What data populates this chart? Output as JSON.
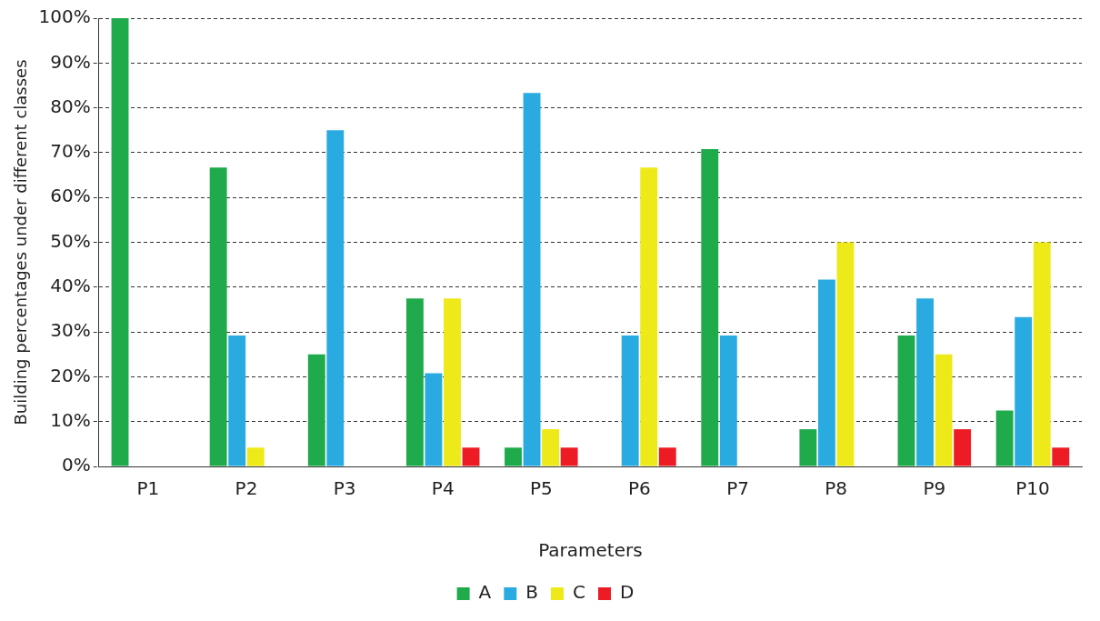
{
  "chart_data": {
    "type": "bar",
    "xlabel": "Parameters",
    "ylabel": "Building percentages under different classes",
    "categories": [
      "P1",
      "P2",
      "P3",
      "P4",
      "P5",
      "P6",
      "P7",
      "P8",
      "P9",
      "P10"
    ],
    "series": [
      {
        "name": "A",
        "color": "#1faa4b",
        "values": [
          100,
          66.7,
          25,
          37.5,
          4.2,
          0,
          70.8,
          8.3,
          29.2,
          12.5
        ]
      },
      {
        "name": "B",
        "color": "#29abe2",
        "values": [
          0,
          29.2,
          75,
          20.8,
          83.3,
          29.2,
          29.2,
          41.7,
          37.5,
          33.3
        ]
      },
      {
        "name": "C",
        "color": "#eeea1a",
        "values": [
          0,
          4.2,
          0,
          37.5,
          8.3,
          66.7,
          0,
          50,
          25,
          50
        ]
      },
      {
        "name": "D",
        "color": "#ed1c24",
        "values": [
          0,
          0,
          0,
          4.2,
          4.2,
          4.2,
          0,
          0,
          8.3,
          4.2
        ]
      }
    ],
    "ylim": [
      0,
      100
    ],
    "yticks": [
      {
        "value": 0,
        "label": "0%"
      },
      {
        "value": 10,
        "label": "10%"
      },
      {
        "value": 20,
        "label": "20%"
      },
      {
        "value": 30,
        "label": "30%"
      },
      {
        "value": 40,
        "label": "40%"
      },
      {
        "value": 50,
        "label": "50%"
      },
      {
        "value": 60,
        "label": "60%"
      },
      {
        "value": 70,
        "label": "70%"
      },
      {
        "value": 80,
        "label": "80%"
      },
      {
        "value": 90,
        "label": "90%"
      },
      {
        "value": 100,
        "label": "100%"
      }
    ],
    "grid": "y",
    "legend": "bottom"
  }
}
